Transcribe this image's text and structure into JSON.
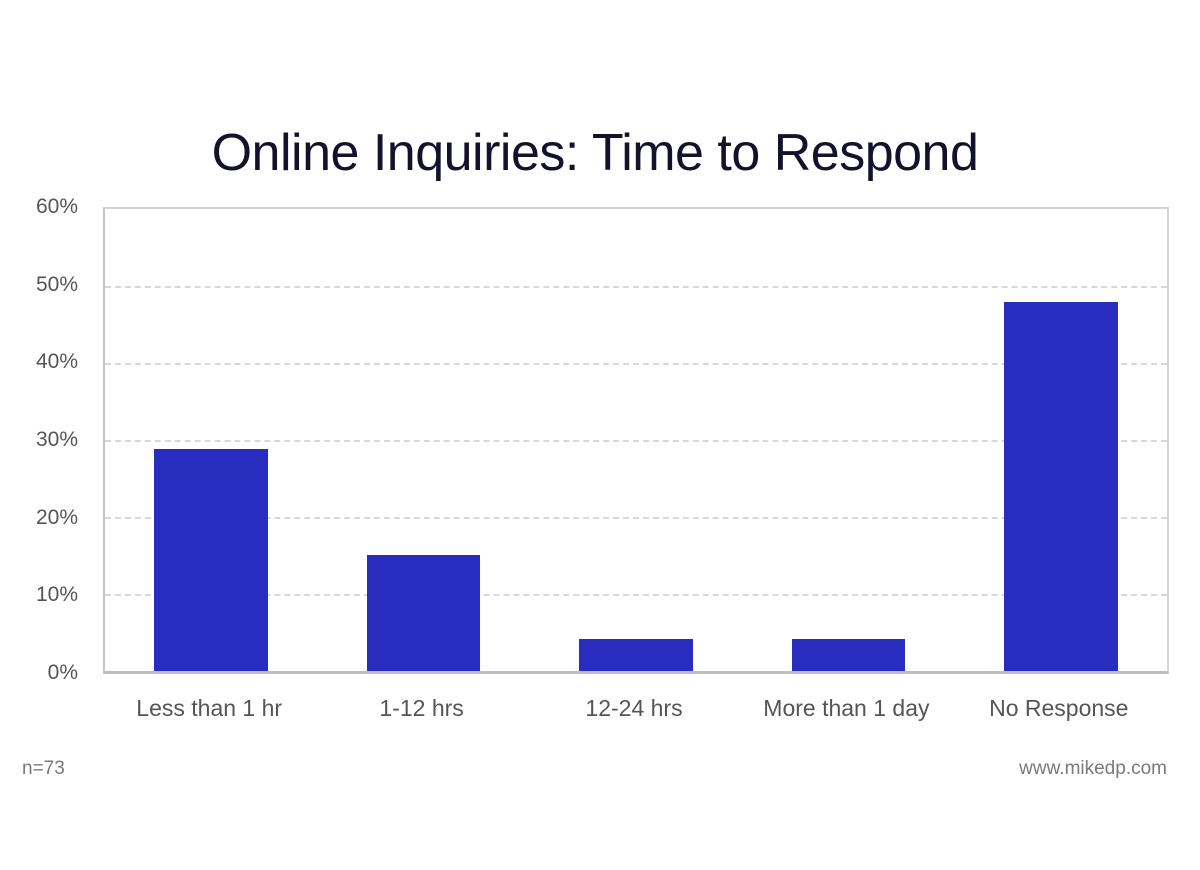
{
  "title": "Online Inquiries: Time to Respond",
  "footer": {
    "sample_size": "n=73",
    "source": "www.mikedp.com"
  },
  "colors": {
    "bar": "#282dbf",
    "title": "#12122b",
    "axis_text": "#555555",
    "grid": "#d8d8d8"
  },
  "y_ticks": [
    "60%",
    "50%",
    "40%",
    "30%",
    "20%",
    "10%",
    "0%"
  ],
  "chart_data": {
    "type": "bar",
    "title": "Online Inquiries: Time to Respond",
    "categories": [
      "Less than 1 hr",
      "1-12 hrs",
      "12-24 hrs",
      "More than 1 day",
      "No Response"
    ],
    "values": [
      28.8,
      15.1,
      4.1,
      4.1,
      47.9
    ],
    "unit": "%",
    "xlabel": "",
    "ylabel": "",
    "ylim": [
      0,
      60
    ],
    "y_tick_step": 10,
    "grid": {
      "horizontal": true,
      "style": "dashed"
    },
    "legend": null,
    "annotations": [
      "n=73",
      "www.mikedp.com"
    ]
  }
}
